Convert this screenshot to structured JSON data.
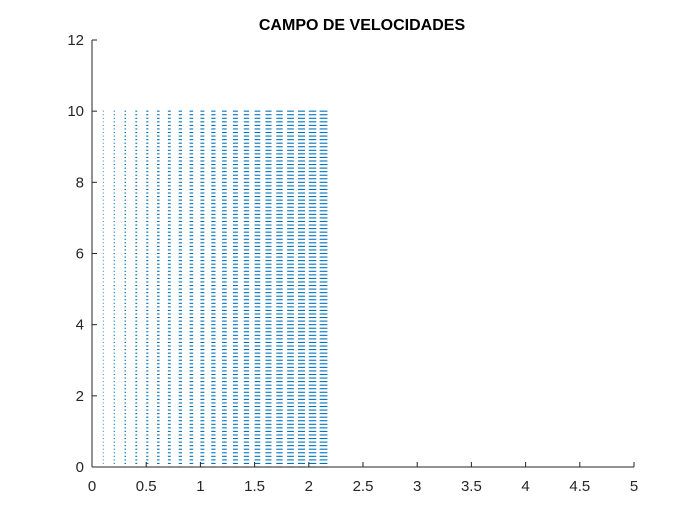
{
  "chart_data": {
    "type": "quiver",
    "title": "CAMPO DE VELOCIDADES",
    "xlabel": "",
    "ylabel": "",
    "xlim": [
      0,
      5
    ],
    "ylim": [
      0,
      12
    ],
    "xticks": [
      0,
      0.5,
      1,
      1.5,
      2,
      2.5,
      3,
      3.5,
      4,
      4.5,
      5
    ],
    "xtick_labels": [
      "0",
      "0.5",
      "1",
      "1.5",
      "2",
      "2.5",
      "3",
      "3.5",
      "4",
      "4.5",
      "5"
    ],
    "yticks": [
      0,
      2,
      4,
      6,
      8,
      10,
      12
    ],
    "ytick_labels": [
      "0",
      "2",
      "4",
      "6",
      "8",
      "10",
      "12"
    ],
    "grid": false,
    "box": false,
    "series": [
      {
        "color": "#0072BD",
        "x_columns": [
          0.1,
          0.2,
          0.3,
          0.4,
          0.5,
          0.6,
          0.7,
          0.8,
          0.9,
          1.0,
          1.1,
          1.2,
          1.3,
          1.4,
          1.5,
          1.6,
          1.7,
          1.8,
          1.9,
          2.0,
          2.1
        ],
        "y_range": [
          0,
          10
        ],
        "vector_direction": "horizontal (+x)",
        "magnitude_trend": "increases with x"
      }
    ]
  }
}
